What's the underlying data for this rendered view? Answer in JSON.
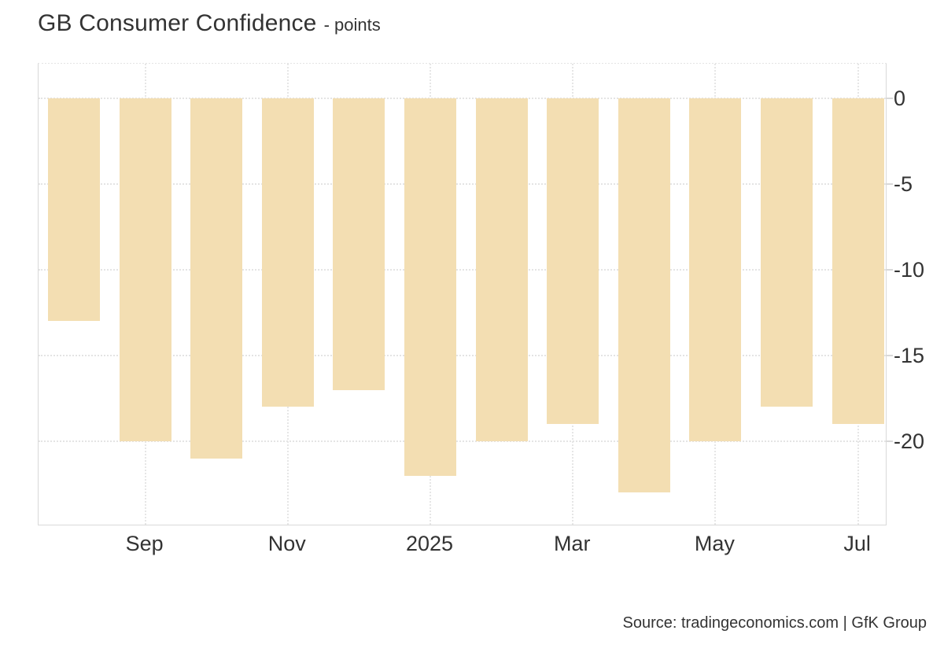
{
  "header": {
    "title": "GB Consumer Confidence",
    "subtitle": "- points"
  },
  "footer": {
    "source": "Source: tradingeconomics.com | GfK Group"
  },
  "colors": {
    "bar": "#F3DEB2",
    "grid_dotted": "#E4E4E4",
    "frame": "#D9D9D9",
    "text": "#333333",
    "background": "#FFFFFF"
  },
  "chart_data": {
    "type": "bar",
    "title": "GB Consumer Confidence",
    "subtitle": "- points",
    "ylabel": "points",
    "xlabel": "",
    "categories": [
      "Aug 2024",
      "Sep 2024",
      "Oct 2024",
      "Nov 2024",
      "Dec 2024",
      "Jan 2025",
      "Feb 2025",
      "Mar 2025",
      "Apr 2025",
      "May 2025",
      "Jun 2025",
      "Jul 2025"
    ],
    "values": [
      -13,
      -20,
      -21,
      -18,
      -17,
      -22,
      -20,
      -19,
      -23,
      -20,
      -18,
      -19
    ],
    "x_ticks": [
      {
        "label": "Sep",
        "index": 1
      },
      {
        "label": "Nov",
        "index": 3
      },
      {
        "label": "2025",
        "index": 5
      },
      {
        "label": "Mar",
        "index": 7
      },
      {
        "label": "May",
        "index": 9
      },
      {
        "label": "Jul",
        "index": 11
      }
    ],
    "y_ticks": [
      {
        "label": "0",
        "value": 0
      },
      {
        "label": "-5",
        "value": -5
      },
      {
        "label": "-10",
        "value": -10
      },
      {
        "label": "-15",
        "value": -15
      },
      {
        "label": "-20",
        "value": -20
      }
    ],
    "ylim": [
      2.0,
      -25.0
    ],
    "yaxis_side": "right",
    "grid": "dotted",
    "legend": "none",
    "bar_color": "#F3DEB2",
    "source": "Source: tradingeconomics.com | GfK Group"
  }
}
